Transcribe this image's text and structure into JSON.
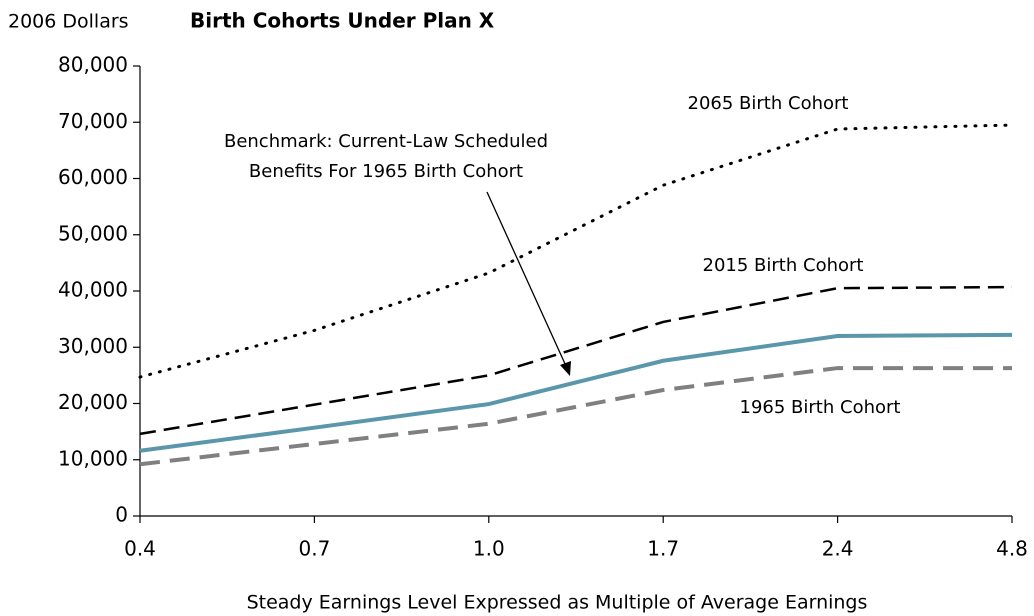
{
  "chart_data": {
    "type": "line",
    "title": "Birth Cohorts Under Plan X",
    "y_label": "2006 Dollars",
    "x_label": "Steady Earnings Level Expressed as Multiple of Average Earnings",
    "categories": [
      "0.4",
      "0.7",
      "1.0",
      "1.7",
      "2.4",
      "4.8"
    ],
    "ylim": [
      0,
      80000
    ],
    "yticks": [
      0,
      {
        "value": 10000,
        "label": "10,000"
      },
      {
        "value": 20000,
        "label": "20,000"
      },
      {
        "value": 30000,
        "label": "30,000"
      },
      {
        "value": 40000,
        "label": "40,000"
      },
      {
        "value": 50000,
        "label": "50,000"
      },
      {
        "value": 60000,
        "label": "60,000"
      },
      {
        "value": 70000,
        "label": "70,000"
      },
      {
        "value": 80000,
        "label": "80,000"
      }
    ],
    "series": [
      {
        "name": "2065 Birth Cohort",
        "color": "#000000",
        "style": "dotted",
        "values": [
          24700,
          33000,
          43200,
          58800,
          68800,
          69500
        ]
      },
      {
        "name": "2015 Birth Cohort",
        "color": "#000000",
        "style": "dashed",
        "values": [
          14600,
          19800,
          25000,
          34500,
          40500,
          40700
        ]
      },
      {
        "name_lines": [
          "Benchmark: Current-Law Scheduled",
          "Benefits For 1965 Birth Cohort"
        ],
        "color": "#5b97aa",
        "style": "solid",
        "values": [
          11600,
          15700,
          19900,
          27600,
          32000,
          32200
        ]
      },
      {
        "name": "1965 Birth Cohort",
        "color": "#808080",
        "style": "dashed",
        "values": [
          9200,
          12800,
          16400,
          22400,
          26300,
          26300
        ]
      }
    ]
  }
}
